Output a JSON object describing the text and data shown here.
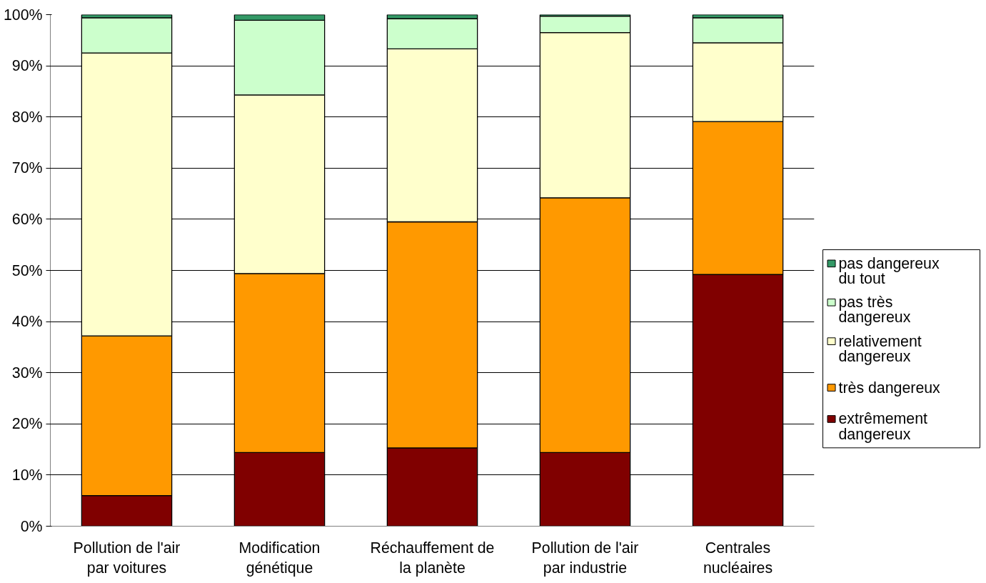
{
  "chart_data": {
    "type": "bar",
    "stacked": true,
    "categories": [
      "Pollution de l'air par voitures",
      "Modification génétique",
      "Réchauffement de la planète",
      "Pollution de l'air par industrie",
      "Centrales nucléaires"
    ],
    "series": [
      {
        "name": "extrêmement dangereux",
        "color": "#800000",
        "values": [
          6.0,
          14.4,
          15.3,
          14.4,
          49.2
        ]
      },
      {
        "name": "très dangereux",
        "color": "#ff9900",
        "values": [
          31.2,
          35.0,
          44.2,
          49.8,
          29.9
        ]
      },
      {
        "name": "relativement dangereux",
        "color": "#ffffcc",
        "values": [
          55.3,
          34.9,
          33.8,
          32.3,
          15.4
        ]
      },
      {
        "name": "pas très dangereux",
        "color": "#ccffcc",
        "values": [
          6.9,
          14.6,
          5.9,
          3.2,
          4.9
        ]
      },
      {
        "name": "pas dangereux du tout",
        "color": "#339966",
        "values": [
          0.6,
          1.1,
          0.8,
          0.3,
          0.6
        ]
      }
    ],
    "ylim": [
      0,
      100
    ],
    "yticks": [
      {
        "value": 0,
        "label": "0%"
      },
      {
        "value": 10,
        "label": "10%"
      },
      {
        "value": 20,
        "label": "20%"
      },
      {
        "value": 30,
        "label": "30%"
      },
      {
        "value": 40,
        "label": "40%"
      },
      {
        "value": 50,
        "label": "50%"
      },
      {
        "value": 60,
        "label": "60%"
      },
      {
        "value": 70,
        "label": "70%"
      },
      {
        "value": 80,
        "label": "80%"
      },
      {
        "value": 90,
        "label": "90%"
      },
      {
        "value": 100,
        "label": "100%"
      }
    ],
    "grid": "y",
    "legend": "right"
  }
}
